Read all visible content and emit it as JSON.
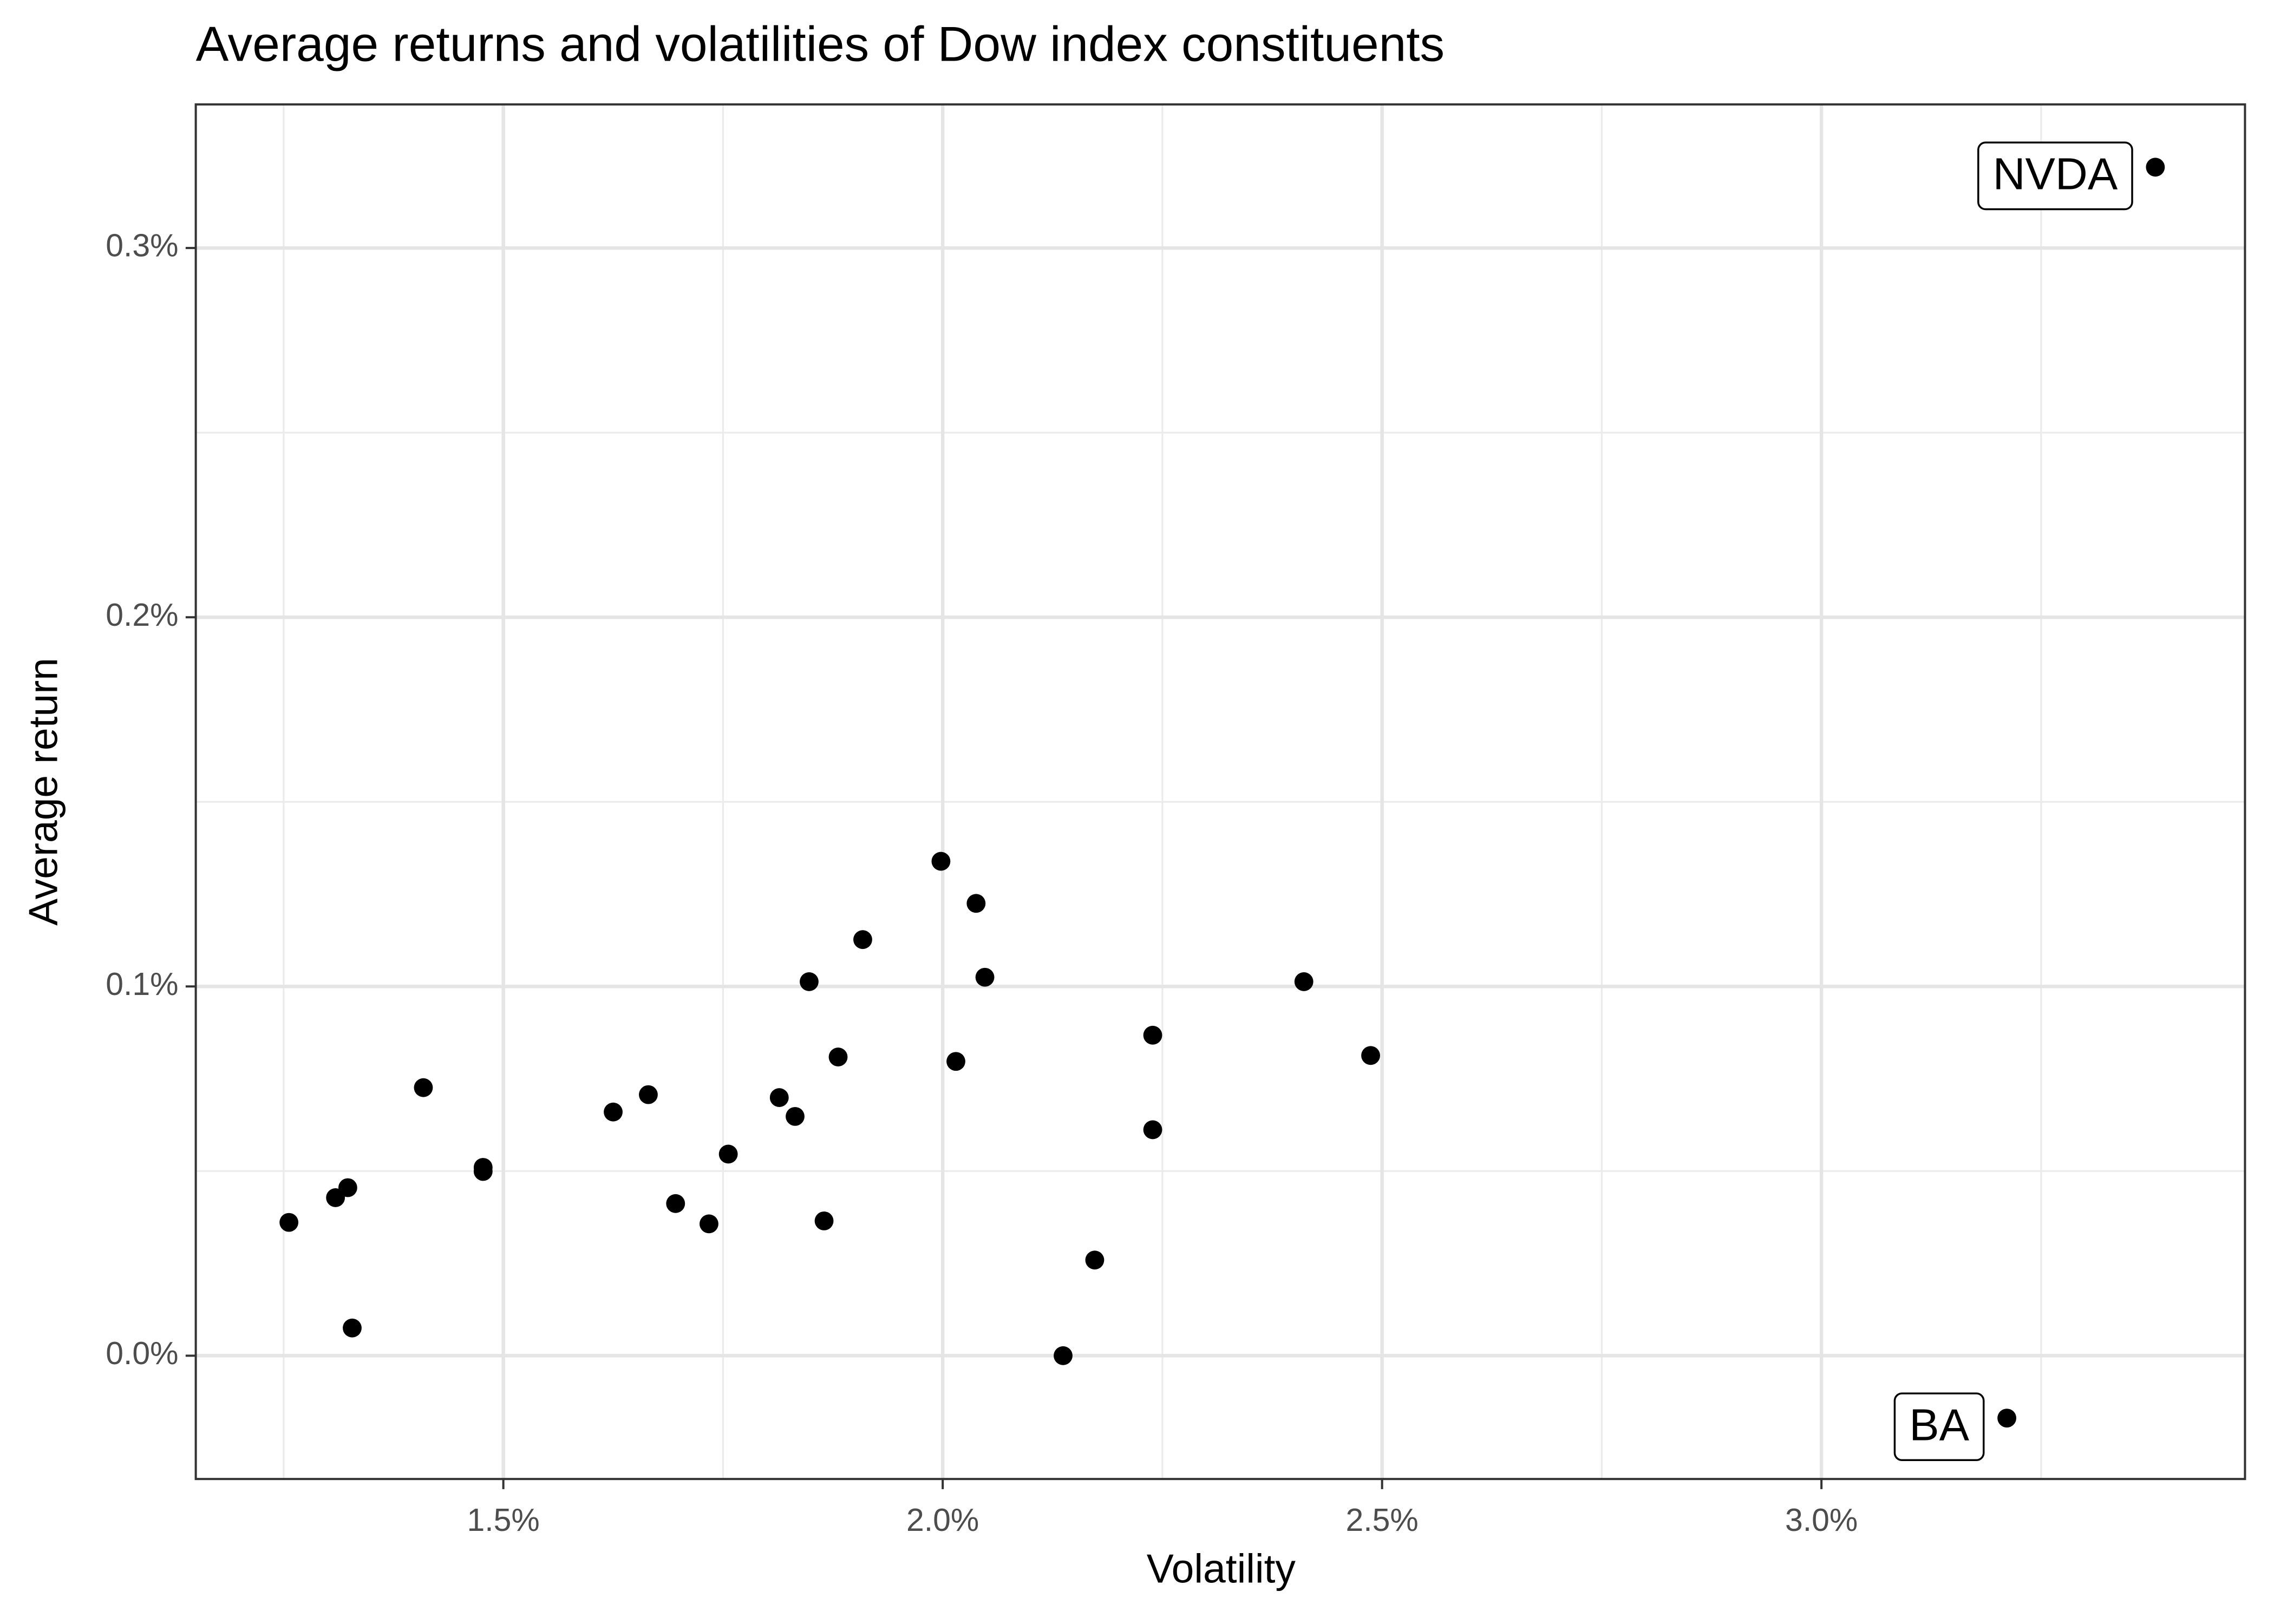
{
  "chart_data": {
    "type": "scatter",
    "title": "Average returns and volatilities of Dow index constituents",
    "xlabel": "Volatility",
    "ylabel": "Average return",
    "x": [
      1.256,
      1.309,
      1.323,
      1.328,
      1.409,
      1.477,
      1.477,
      1.625,
      1.665,
      1.696,
      1.734,
      1.756,
      1.814,
      1.832,
      1.848,
      1.865,
      1.881,
      1.909,
      1.998,
      2.015,
      2.038,
      2.048,
      2.137,
      2.173,
      2.239,
      2.239,
      2.411,
      2.487,
      3.211,
      3.38
    ],
    "y": [
      0.0361,
      0.0428,
      0.0455,
      0.0075,
      0.0726,
      0.051,
      0.0499,
      0.066,
      0.0707,
      0.0412,
      0.0357,
      0.0546,
      0.0699,
      0.0648,
      0.1013,
      0.0365,
      0.0809,
      0.1127,
      0.1339,
      0.0797,
      0.1225,
      0.1025,
      0.0,
      0.0259,
      0.0868,
      0.0612,
      0.1013,
      0.0813,
      -0.0169,
      0.3219
    ],
    "labels": [
      null,
      null,
      null,
      null,
      null,
      null,
      null,
      null,
      null,
      null,
      null,
      null,
      null,
      null,
      null,
      null,
      null,
      null,
      null,
      null,
      null,
      null,
      null,
      null,
      null,
      null,
      null,
      null,
      "BA",
      "NVDA"
    ],
    "color": "#000000",
    "xlim": [
      1.15,
      3.482
    ],
    "ylim": [
      -0.0334,
      0.3389
    ],
    "xticks": [
      {
        "value": 1.5,
        "label": "1.5%"
      },
      {
        "value": 2.0,
        "label": "2.0%"
      },
      {
        "value": 2.5,
        "label": "2.5%"
      },
      {
        "value": 3.0,
        "label": "3.0%"
      }
    ],
    "yticks": [
      {
        "value": 0.0,
        "label": "0.0%"
      },
      {
        "value": 0.1,
        "label": "0.1%"
      },
      {
        "value": 0.2,
        "label": "0.2%"
      },
      {
        "value": 0.3,
        "label": "0.3%"
      }
    ],
    "minor_xticks": [
      1.25,
      1.75,
      2.25,
      2.75,
      3.25
    ],
    "minor_yticks": [
      0.05,
      0.15,
      0.25
    ],
    "grid": true
  }
}
